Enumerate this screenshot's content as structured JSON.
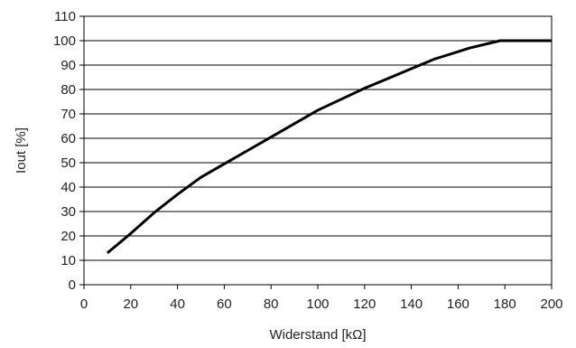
{
  "chart_data": {
    "type": "line",
    "title": "",
    "xlabel": "Widerstand [kΩ]",
    "ylabel": "Iout [%]",
    "xlim": [
      0,
      200
    ],
    "ylim": [
      0,
      110
    ],
    "xticks": [
      0,
      20,
      40,
      60,
      80,
      100,
      120,
      140,
      160,
      180,
      200
    ],
    "yticks": [
      0,
      10,
      20,
      30,
      40,
      50,
      60,
      70,
      80,
      90,
      100,
      110
    ],
    "grid": "horizontal",
    "series": [
      {
        "x": [
          10,
          20,
          30,
          40,
          50,
          60,
          70,
          80,
          90,
          100,
          110,
          120,
          130,
          140,
          150,
          165,
          178,
          200
        ],
        "values": [
          13,
          21,
          29.5,
          37,
          44,
          49.5,
          55,
          60.5,
          66,
          71.5,
          76,
          80.5,
          84.5,
          88.5,
          92.5,
          97,
          100,
          100
        ]
      }
    ]
  }
}
